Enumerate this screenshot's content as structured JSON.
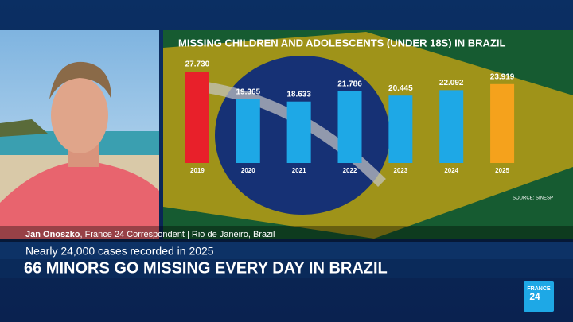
{
  "chart_data": {
    "type": "bar",
    "title": "MISSING CHILDREN AND ADOLESCENTS (UNDER 18S) IN BRAZIL",
    "categories": [
      "2019",
      "2020",
      "2021",
      "2022",
      "2023",
      "2024",
      "2025"
    ],
    "values": [
      27730,
      19365,
      18633,
      21786,
      20445,
      22092,
      23919
    ],
    "value_labels": [
      "27.730",
      "19.365",
      "18.633",
      "21.786",
      "20.445",
      "22.092",
      "23.919"
    ],
    "colors": [
      "#e8202a",
      "#1ea8e6",
      "#1ea8e6",
      "#1ea8e6",
      "#1ea8e6",
      "#1ea8e6",
      "#f5a21c"
    ],
    "source": "SOURCE: SINESP"
  },
  "lower_third": {
    "name": "Jan Onoszko",
    "role": ", France 24 Correspondent | Rio de Janeiro, Brazil",
    "subheadline": "Nearly 24,000 cases recorded in 2025",
    "headline": "66 MINORS GO MISSING EVERY DAY IN BRAZIL"
  },
  "logo": {
    "top": "FRANCE",
    "bottom": "24"
  }
}
